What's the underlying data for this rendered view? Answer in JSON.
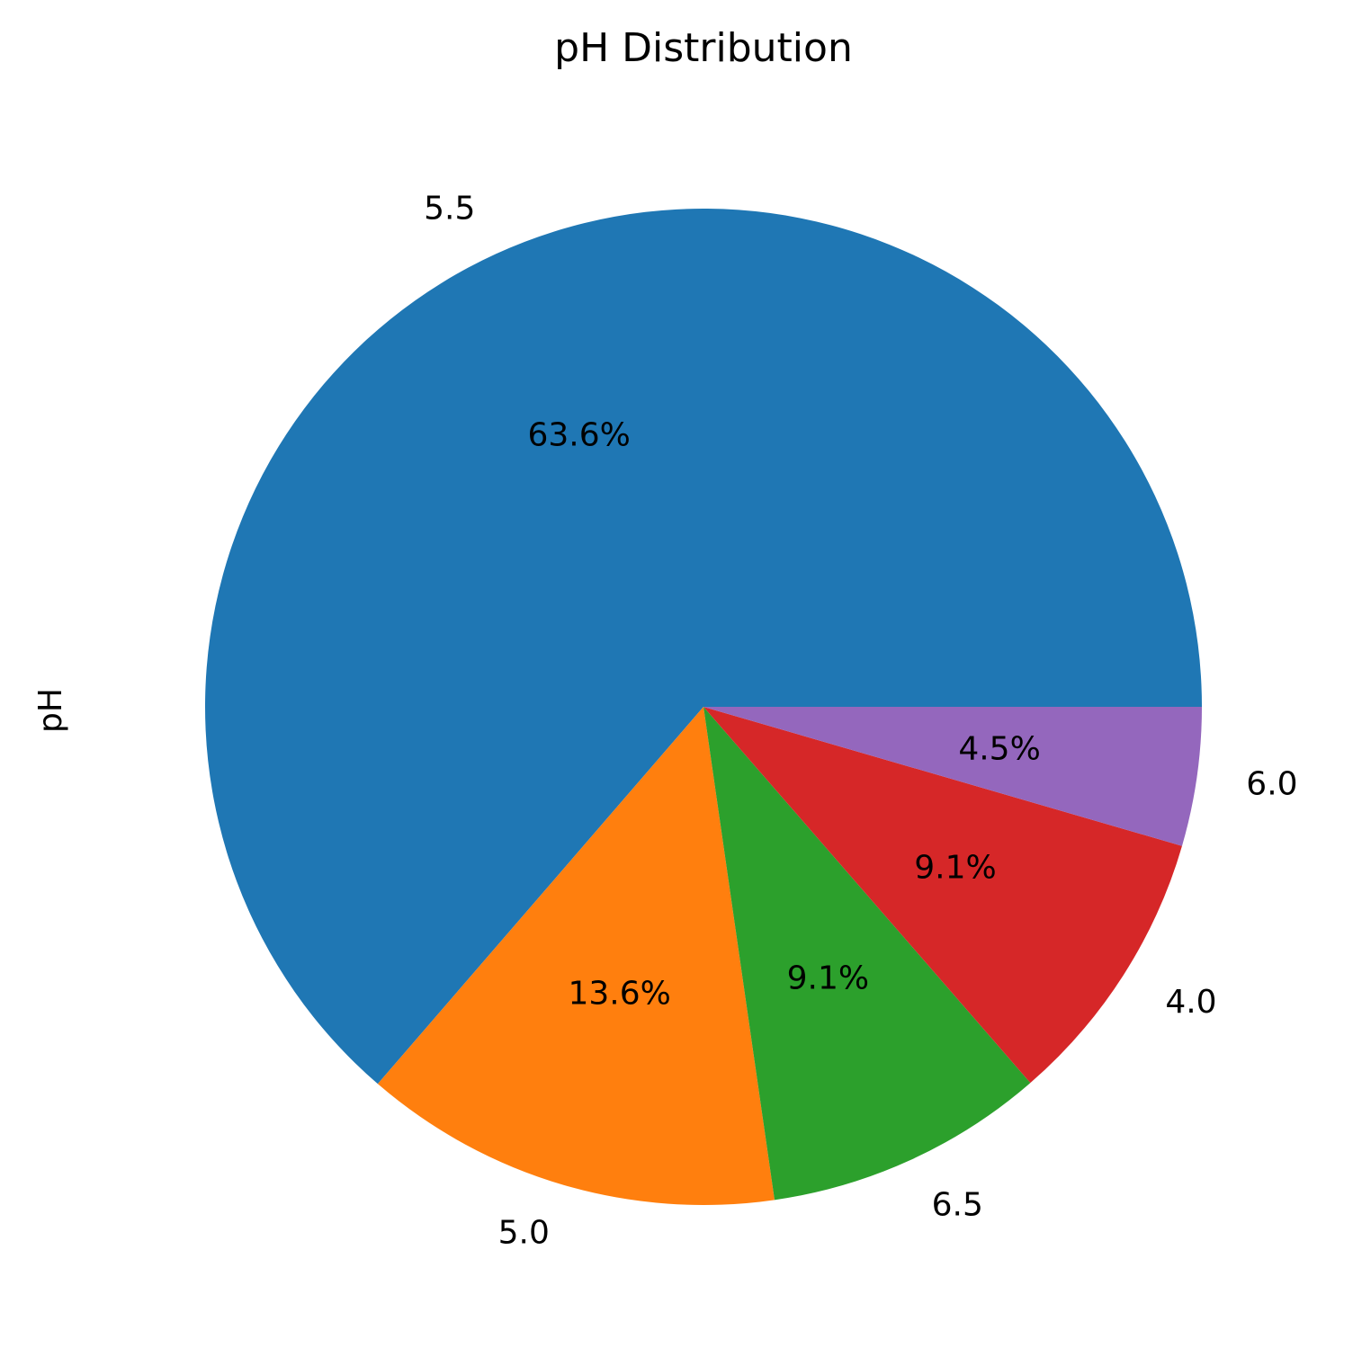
{
  "chart_data": {
    "type": "pie",
    "title": "pH Distribution",
    "ylabel": "pH",
    "start_angle_deg": 0,
    "direction": "counterclockwise",
    "slices": [
      {
        "label": "5.5",
        "value": 63.6,
        "pct_label": "63.6%",
        "color": "#1f77b4"
      },
      {
        "label": "5.0",
        "value": 13.6,
        "pct_label": "13.6%",
        "color": "#ff7f0e"
      },
      {
        "label": "6.5",
        "value": 9.1,
        "pct_label": "9.1%",
        "color": "#2ca02c"
      },
      {
        "label": "4.0",
        "value": 9.1,
        "pct_label": "9.1%",
        "color": "#d62728"
      },
      {
        "label": "6.0",
        "value": 4.5,
        "pct_label": "4.5%",
        "color": "#9467bd"
      }
    ]
  }
}
